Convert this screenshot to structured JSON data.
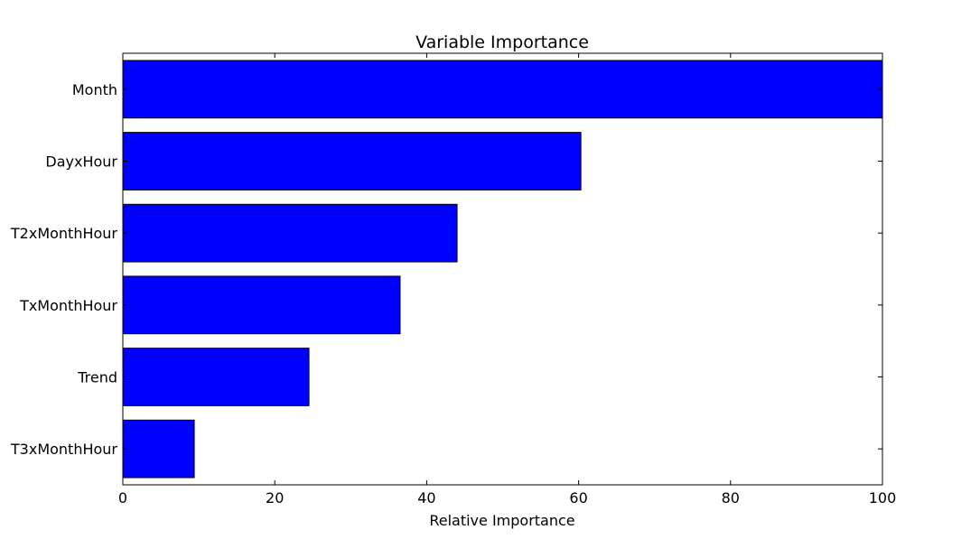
{
  "chart_data": {
    "type": "bar",
    "orientation": "horizontal",
    "title": "Variable Importance",
    "xlabel": "Relative Importance",
    "ylabel": "",
    "xlim": [
      0,
      100
    ],
    "xticks": [
      "0",
      "20",
      "40",
      "60",
      "80",
      "100"
    ],
    "categories": [
      "Month",
      "DayxHour",
      "T2xMonthHour",
      "TxMonthHour",
      "Trend",
      "T3xMonthHour"
    ],
    "values": [
      100,
      60.3,
      44,
      36.5,
      24.5,
      9.4
    ],
    "bar_color": "#0000ff",
    "grid": false
  }
}
